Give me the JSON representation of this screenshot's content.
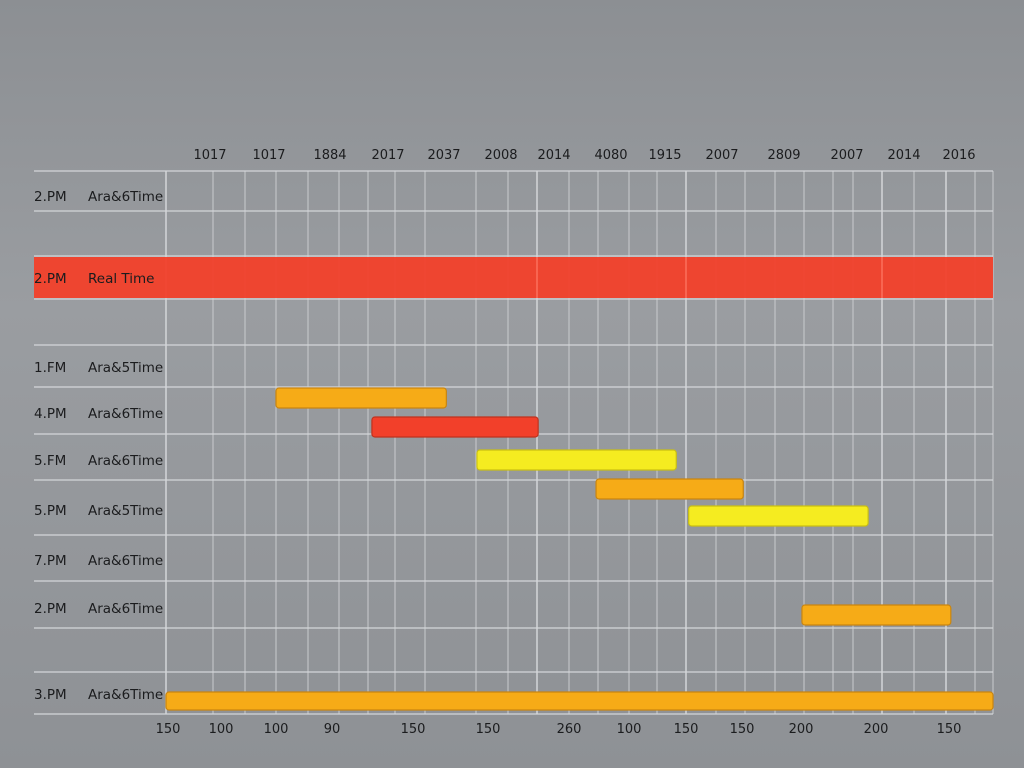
{
  "chart_data": {
    "type": "gantt",
    "title": "",
    "colors": {
      "red": "#f2402a",
      "orange": "#f6ab17",
      "yellow": "#f5ec20",
      "realtime_band": "#f2402a"
    },
    "top_labels": [
      "1017",
      "1017",
      "1884",
      "2017",
      "2037",
      "2008",
      "2014",
      "4080",
      "1915",
      "2007",
      "2809",
      "2007",
      "2014",
      "2016"
    ],
    "bottom_labels": [
      "150",
      "100",
      "100",
      "90",
      "150",
      "150",
      "260",
      "100",
      "150",
      "150",
      "200",
      "200",
      "150"
    ],
    "rows": [
      {
        "time": "2.PM",
        "name": "Ara&6Time"
      },
      {
        "time": "2.PM",
        "name": "Real Time",
        "highlight": true
      },
      {
        "time": "1.FM",
        "name": "Ara&5Time"
      },
      {
        "time": "4.PM",
        "name": "Ara&6Time"
      },
      {
        "time": "5.FM",
        "name": "Ara&6Time"
      },
      {
        "time": "5.PM",
        "name": "Ara&5Time"
      },
      {
        "time": "7.PM",
        "name": "Ara&6Time"
      },
      {
        "time": "2.PM",
        "name": "Ara&6Time"
      },
      {
        "time": "3.PM",
        "name": "Ara&6Time"
      }
    ],
    "x_range": [
      0,
      100
    ],
    "bars": [
      {
        "lane": 3,
        "start": 13.3,
        "end": 33.9,
        "color": "orange"
      },
      {
        "lane": 4,
        "start": 24.9,
        "end": 45.0,
        "color": "red"
      },
      {
        "lane": 5,
        "start": 37.6,
        "end": 61.7,
        "color": "yellow"
      },
      {
        "lane": 6,
        "start": 52.0,
        "end": 69.8,
        "color": "orange"
      },
      {
        "lane": 7,
        "start": 63.2,
        "end": 84.9,
        "color": "yellow"
      },
      {
        "lane": 9,
        "start": 76.9,
        "end": 94.9,
        "color": "orange"
      },
      {
        "lane": 11,
        "start": 0.0,
        "end": 100.0,
        "color": "orange"
      }
    ]
  }
}
